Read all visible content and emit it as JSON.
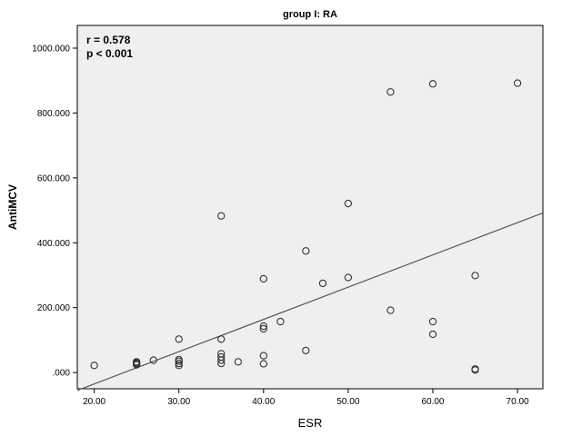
{
  "chart_data": {
    "type": "scatter",
    "title": "group I: RA",
    "xlabel": "ESR",
    "ylabel": "AntiMCV",
    "xlim": [
      18,
      73
    ],
    "ylim": [
      -50,
      1070
    ],
    "xticks": [
      20,
      30,
      40,
      50,
      60,
      70
    ],
    "xtick_labels": [
      "20.00",
      "30.00",
      "40.00",
      "50.00",
      "60.00",
      "70.00"
    ],
    "yticks": [
      0,
      200,
      400,
      600,
      800,
      1000
    ],
    "ytick_labels": [
      ".000",
      "200.000",
      "400.000",
      "600.000",
      "800.000",
      "1000.000"
    ],
    "annotations": [
      "r = 0.578",
      "p < 0.001"
    ],
    "grid": false,
    "background": "#efefef",
    "fit_line": {
      "x": [
        18,
        73
      ],
      "y": [
        -55,
        492
      ]
    },
    "points": [
      {
        "x": 20,
        "y": 22
      },
      {
        "x": 25,
        "y": 24
      },
      {
        "x": 25,
        "y": 27
      },
      {
        "x": 25,
        "y": 30
      },
      {
        "x": 25,
        "y": 33
      },
      {
        "x": 27,
        "y": 38
      },
      {
        "x": 30,
        "y": 22
      },
      {
        "x": 30,
        "y": 28
      },
      {
        "x": 30,
        "y": 35
      },
      {
        "x": 30,
        "y": 40
      },
      {
        "x": 30,
        "y": 103
      },
      {
        "x": 35,
        "y": 28
      },
      {
        "x": 35,
        "y": 38
      },
      {
        "x": 35,
        "y": 48
      },
      {
        "x": 35,
        "y": 58
      },
      {
        "x": 35,
        "y": 103
      },
      {
        "x": 35,
        "y": 483
      },
      {
        "x": 37,
        "y": 33
      },
      {
        "x": 40,
        "y": 27
      },
      {
        "x": 40,
        "y": 52
      },
      {
        "x": 40,
        "y": 135
      },
      {
        "x": 40,
        "y": 143
      },
      {
        "x": 40,
        "y": 289
      },
      {
        "x": 42,
        "y": 157
      },
      {
        "x": 45,
        "y": 68
      },
      {
        "x": 45,
        "y": 375
      },
      {
        "x": 47,
        "y": 275
      },
      {
        "x": 50,
        "y": 293
      },
      {
        "x": 50,
        "y": 521
      },
      {
        "x": 55,
        "y": 192
      },
      {
        "x": 55,
        "y": 865
      },
      {
        "x": 60,
        "y": 118
      },
      {
        "x": 60,
        "y": 157
      },
      {
        "x": 60,
        "y": 890
      },
      {
        "x": 65,
        "y": 8
      },
      {
        "x": 65,
        "y": 11
      },
      {
        "x": 65,
        "y": 299
      },
      {
        "x": 70,
        "y": 892
      }
    ]
  }
}
